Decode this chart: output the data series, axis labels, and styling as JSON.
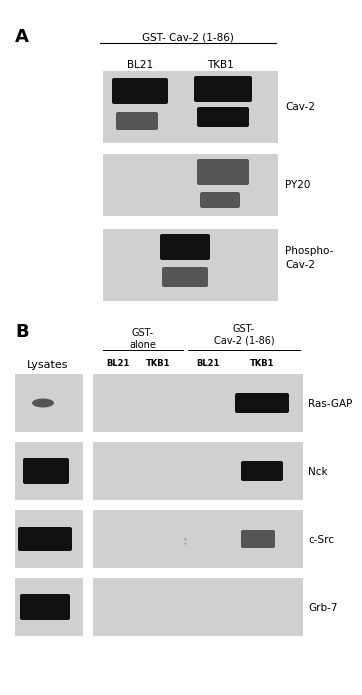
{
  "bg_color": "#ffffff",
  "panel_bg": "#d0d0d0",
  "band_dark": "#111111",
  "band_mid": "#555555",
  "band_light": "#999999",
  "fig_width": 3.22,
  "fig_height": 6.76,
  "section_A_label": "A",
  "section_B_label": "B",
  "panel_A_title": "GST- Cav-2 (1-86)",
  "panel_A_col1": "BL21",
  "panel_A_col2": "TKB1",
  "panel_A_rows": [
    "Cav-2",
    "PY20",
    "Phospho-\nCav-2"
  ],
  "panel_B_lysates_label": "Lysates",
  "panel_B_col1_header": "GST-\nalone",
  "panel_B_col2_header": "GST-\nCav-2 (1-86)",
  "panel_B_subcols": [
    "BL21",
    "TKB1",
    "BL21",
    "TKB1"
  ],
  "panel_B_rows": [
    "Ras-GAP",
    "Nck",
    "c-Src",
    "Grb-7"
  ]
}
